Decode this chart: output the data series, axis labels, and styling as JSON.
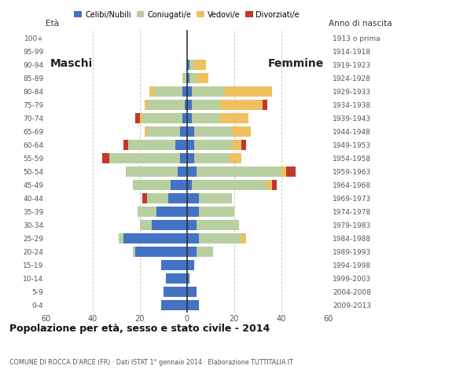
{
  "age_groups": [
    "0-4",
    "5-9",
    "10-14",
    "15-19",
    "20-24",
    "25-29",
    "30-34",
    "35-39",
    "40-44",
    "45-49",
    "50-54",
    "55-59",
    "60-64",
    "65-69",
    "70-74",
    "75-79",
    "80-84",
    "85-89",
    "90-94",
    "95-99",
    "100+"
  ],
  "birth_years": [
    "2009-2013",
    "2004-2008",
    "1999-2003",
    "1994-1998",
    "1989-1993",
    "1984-1988",
    "1979-1983",
    "1974-1978",
    "1969-1973",
    "1964-1968",
    "1959-1963",
    "1954-1958",
    "1949-1953",
    "1944-1948",
    "1939-1943",
    "1934-1938",
    "1929-1933",
    "1924-1928",
    "1919-1923",
    "1914-1918",
    "1913 o prima"
  ],
  "males": {
    "celibe": [
      11,
      10,
      9,
      11,
      22,
      27,
      15,
      13,
      8,
      7,
      4,
      3,
      5,
      3,
      2,
      1,
      2,
      0,
      0,
      0,
      0
    ],
    "coniugato": [
      0,
      0,
      0,
      0,
      1,
      2,
      5,
      8,
      9,
      16,
      22,
      30,
      20,
      14,
      17,
      16,
      12,
      2,
      0,
      0,
      0
    ],
    "vedovo": [
      0,
      0,
      0,
      0,
      0,
      0,
      0,
      0,
      0,
      0,
      0,
      0,
      0,
      1,
      1,
      1,
      2,
      0,
      0,
      0,
      0
    ],
    "divorziato": [
      0,
      0,
      0,
      0,
      0,
      0,
      0,
      0,
      2,
      0,
      0,
      3,
      2,
      0,
      2,
      0,
      0,
      0,
      0,
      0,
      0
    ]
  },
  "females": {
    "nubile": [
      5,
      4,
      1,
      3,
      4,
      5,
      4,
      5,
      5,
      2,
      4,
      3,
      3,
      3,
      2,
      2,
      2,
      1,
      1,
      0,
      0
    ],
    "coniugata": [
      0,
      0,
      0,
      0,
      7,
      18,
      18,
      15,
      14,
      32,
      36,
      15,
      16,
      16,
      12,
      12,
      14,
      3,
      2,
      0,
      0
    ],
    "vedova": [
      0,
      0,
      0,
      0,
      0,
      2,
      0,
      0,
      0,
      2,
      2,
      5,
      4,
      8,
      12,
      18,
      20,
      5,
      5,
      0,
      0
    ],
    "divorziata": [
      0,
      0,
      0,
      0,
      0,
      0,
      0,
      0,
      0,
      2,
      4,
      0,
      2,
      0,
      0,
      2,
      0,
      0,
      0,
      0,
      0
    ]
  },
  "colors": {
    "celibe_nubile": "#4472c4",
    "coniugato": "#b8cfa0",
    "vedovo": "#f0c060",
    "divorziato": "#c0392b"
  },
  "title": "Popolazione per età, sesso e stato civile - 2014",
  "subtitle": "COMUNE DI ROCCA D'ARCE (FR) · Dati ISTAT 1° gennaio 2014 · Elaborazione TUTTITALIA.IT",
  "xlabel_left": "Maschi",
  "xlabel_right": "Femmine",
  "ylabel_left": "Età",
  "ylabel_right": "Anno di nascita",
  "xlim": 60,
  "background_color": "#ffffff"
}
